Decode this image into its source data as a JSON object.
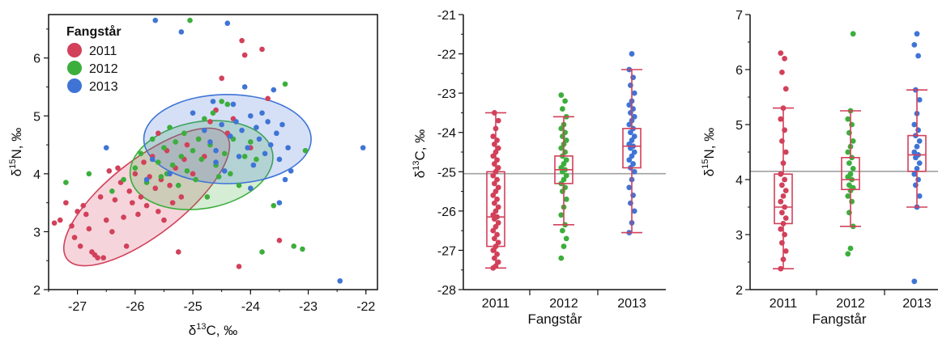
{
  "colors": {
    "2011": "#d2405a",
    "2012": "#3cae3c",
    "2013": "#3f74d6",
    "box": "#d2405a",
    "mean": "#a0a0a0",
    "axis": "#111111"
  },
  "legend": {
    "title": "Fangstår",
    "entries": [
      "2011",
      "2012",
      "2013"
    ]
  },
  "chart_data": [
    {
      "type": "scatter",
      "id": "scatter",
      "xlabel_symbol": "δ",
      "xlabel_sup": "13",
      "xlabel_rest": "C, ‰",
      "ylabel_symbol": "δ",
      "ylabel_sup": "15",
      "ylabel_rest": "N, ‰",
      "xlim": [
        -27.5,
        -21.8
      ],
      "ylim": [
        2,
        6.75
      ],
      "xticks": [
        "-27",
        "-26",
        "-25",
        "-24",
        "-23",
        "-22"
      ],
      "xtick_values": [
        -27,
        -26,
        -25,
        -24,
        -23,
        -22
      ],
      "yticks": [
        "2",
        "3",
        "4",
        "5",
        "6"
      ],
      "ytick_values": [
        2,
        3,
        4,
        5,
        6
      ],
      "series": [
        {
          "name": "2011",
          "points": [
            [
              -27.4,
              3.15
            ],
            [
              -27.3,
              3.2
            ],
            [
              -27.2,
              3.5
            ],
            [
              -27.1,
              3.1
            ],
            [
              -27.05,
              2.9
            ],
            [
              -27.0,
              3.35
            ],
            [
              -26.95,
              2.75
            ],
            [
              -26.9,
              3.45
            ],
            [
              -26.85,
              3.3
            ],
            [
              -26.8,
              3.05
            ],
            [
              -26.75,
              2.65
            ],
            [
              -26.7,
              2.6
            ],
            [
              -26.65,
              2.55
            ],
            [
              -26.6,
              3.6
            ],
            [
              -26.55,
              2.55
            ],
            [
              -26.5,
              3.2
            ],
            [
              -26.45,
              4.05
            ],
            [
              -26.4,
              3.0
            ],
            [
              -26.35,
              3.55
            ],
            [
              -26.3,
              4.1
            ],
            [
              -26.25,
              3.85
            ],
            [
              -26.2,
              3.25
            ],
            [
              -26.15,
              2.75
            ],
            [
              -26.1,
              3.7
            ],
            [
              -26.05,
              3.5
            ],
            [
              -26.0,
              4.0
            ],
            [
              -25.95,
              3.3
            ],
            [
              -25.9,
              3.6
            ],
            [
              -25.85,
              4.2
            ],
            [
              -25.8,
              3.45
            ],
            [
              -25.75,
              3.95
            ],
            [
              -25.7,
              4.3
            ],
            [
              -25.65,
              3.75
            ],
            [
              -25.6,
              3.35
            ],
            [
              -25.55,
              3.9
            ],
            [
              -25.5,
              3.2
            ],
            [
              -25.45,
              4.4
            ],
            [
              -25.4,
              3.8
            ],
            [
              -25.35,
              3.5
            ],
            [
              -25.3,
              4.1
            ],
            [
              -25.25,
              2.65
            ],
            [
              -25.2,
              3.6
            ],
            [
              -25.15,
              4.25
            ],
            [
              -25.1,
              4.5
            ],
            [
              -25.0,
              4.0
            ],
            [
              -24.9,
              4.6
            ],
            [
              -24.8,
              4.3
            ],
            [
              -24.7,
              4.9
            ],
            [
              -24.6,
              5.1
            ],
            [
              -24.5,
              5.65
            ],
            [
              -24.4,
              4.7
            ],
            [
              -24.3,
              4.95
            ],
            [
              -24.2,
              2.4
            ],
            [
              -24.15,
              6.3
            ],
            [
              -24.1,
              6.05
            ],
            [
              -23.8,
              6.15
            ],
            [
              -23.7,
              5.3
            ],
            [
              -23.5,
              2.85
            ],
            [
              -24.0,
              4.45
            ],
            [
              -25.6,
              4.7
            ]
          ]
        },
        {
          "name": "2012",
          "points": [
            [
              -27.2,
              3.85
            ],
            [
              -26.8,
              4.0
            ],
            [
              -26.4,
              3.7
            ],
            [
              -26.2,
              3.9
            ],
            [
              -26.0,
              4.1
            ],
            [
              -25.9,
              4.35
            ],
            [
              -25.8,
              3.85
            ],
            [
              -25.7,
              4.6
            ],
            [
              -25.6,
              4.2
            ],
            [
              -25.55,
              3.95
            ],
            [
              -25.5,
              4.45
            ],
            [
              -25.45,
              4.0
            ],
            [
              -25.4,
              4.8
            ],
            [
              -25.35,
              4.15
            ],
            [
              -25.3,
              4.55
            ],
            [
              -25.25,
              3.8
            ],
            [
              -25.2,
              4.3
            ],
            [
              -25.15,
              4.7
            ],
            [
              -25.1,
              4.05
            ],
            [
              -25.05,
              6.65
            ],
            [
              -25.0,
              4.4
            ],
            [
              -24.95,
              3.9
            ],
            [
              -24.9,
              4.6
            ],
            [
              -24.85,
              4.25
            ],
            [
              -24.8,
              4.95
            ],
            [
              -24.75,
              3.6
            ],
            [
              -24.7,
              4.5
            ],
            [
              -24.65,
              5.05
            ],
            [
              -24.6,
              4.15
            ],
            [
              -24.55,
              3.95
            ],
            [
              -24.5,
              5.25
            ],
            [
              -24.45,
              4.35
            ],
            [
              -24.4,
              5.2
            ],
            [
              -24.35,
              4.0
            ],
            [
              -24.3,
              4.6
            ],
            [
              -24.2,
              3.8
            ],
            [
              -24.1,
              4.3
            ],
            [
              -24.0,
              4.55
            ],
            [
              -23.9,
              4.25
            ],
            [
              -23.8,
              2.65
            ],
            [
              -23.6,
              3.45
            ],
            [
              -23.4,
              5.55
            ],
            [
              -23.25,
              2.75
            ],
            [
              -23.1,
              2.7
            ],
            [
              -23.05,
              4.4
            ]
          ]
        },
        {
          "name": "2013",
          "points": [
            [
              -26.5,
              4.45
            ],
            [
              -25.8,
              3.9
            ],
            [
              -25.7,
              4.25
            ],
            [
              -25.65,
              6.65
            ],
            [
              -25.4,
              4.0
            ],
            [
              -25.2,
              6.45
            ],
            [
              -25.0,
              5.05
            ],
            [
              -24.8,
              4.75
            ],
            [
              -24.7,
              4.55
            ],
            [
              -24.65,
              5.25
            ],
            [
              -24.6,
              4.4
            ],
            [
              -24.5,
              4.85
            ],
            [
              -24.45,
              4.05
            ],
            [
              -24.4,
              6.6
            ],
            [
              -24.35,
              4.65
            ],
            [
              -24.3,
              5.2
            ],
            [
              -24.25,
              4.9
            ],
            [
              -24.2,
              4.3
            ],
            [
              -24.15,
              4.75
            ],
            [
              -24.1,
              5.5
            ],
            [
              -24.05,
              4.45
            ],
            [
              -24.0,
              5.0
            ],
            [
              -23.95,
              4.15
            ],
            [
              -23.9,
              4.8
            ],
            [
              -23.85,
              4.6
            ],
            [
              -23.8,
              5.05
            ],
            [
              -23.75,
              4.35
            ],
            [
              -23.7,
              4.9
            ],
            [
              -23.65,
              4.5
            ],
            [
              -23.6,
              5.45
            ],
            [
              -23.55,
              4.7
            ],
            [
              -23.5,
              4.25
            ],
            [
              -23.45,
              4.85
            ],
            [
              -23.4,
              3.9
            ],
            [
              -23.35,
              4.45
            ],
            [
              -23.3,
              4.05
            ],
            [
              -23.5,
              3.5
            ],
            [
              -24.0,
              3.75
            ],
            [
              -24.6,
              4.2
            ],
            [
              -22.45,
              2.15
            ],
            [
              -22.05,
              4.45
            ]
          ]
        }
      ],
      "ellipses": [
        {
          "name": "2011",
          "cx": -25.8,
          "cy": 3.6,
          "rx": 1.75,
          "ry": 0.65,
          "angle_deg": -38
        },
        {
          "name": "2012",
          "cx": -24.85,
          "cy": 4.15,
          "rx": 1.25,
          "ry": 0.75,
          "angle_deg": -10
        },
        {
          "name": "2013",
          "cx": -24.4,
          "cy": 4.6,
          "rx": 1.45,
          "ry": 0.77,
          "angle_deg": 0
        }
      ]
    },
    {
      "type": "box",
      "id": "box13C",
      "categories": [
        "2011",
        "2012",
        "2013"
      ],
      "xlabel": "Fangstår",
      "ylabel_symbol": "δ",
      "ylabel_sup": "13",
      "ylabel_rest": "C, ‰",
      "ylim": [
        -28,
        -21
      ],
      "yticks": [
        "-28",
        "-27",
        "-26",
        "-25",
        "-24",
        "-23",
        "-22",
        "-21"
      ],
      "ytick_values": [
        -28,
        -27,
        -26,
        -25,
        -24,
        -23,
        -22,
        -21
      ],
      "mean_line": -25.05,
      "boxes": [
        {
          "category": "2011",
          "whislo": -27.45,
          "q1": -26.9,
          "med": -26.15,
          "q3": -25.0,
          "whishi": -23.5
        },
        {
          "category": "2012",
          "whislo": -26.35,
          "q1": -25.3,
          "med": -24.95,
          "q3": -24.6,
          "whishi": -23.6
        },
        {
          "category": "2013",
          "whislo": -26.55,
          "q1": -24.9,
          "med": -24.35,
          "q3": -23.9,
          "whishi": -22.4
        }
      ],
      "points": {
        "2011": [
          -27.45,
          -27.4,
          -27.3,
          -27.2,
          -27.1,
          -27.0,
          -26.9,
          -26.8,
          -26.7,
          -26.6,
          -26.5,
          -26.4,
          -26.3,
          -26.2,
          -26.15,
          -26.1,
          -26.0,
          -25.9,
          -25.8,
          -25.7,
          -25.6,
          -25.5,
          -25.4,
          -25.3,
          -25.2,
          -25.1,
          -25.0,
          -24.9,
          -24.8,
          -24.7,
          -24.6,
          -24.5,
          -24.4,
          -24.3,
          -24.2,
          -24.1,
          -23.9,
          -23.7,
          -23.5
        ],
        "2012": [
          -27.2,
          -26.9,
          -26.7,
          -26.5,
          -26.35,
          -26.1,
          -25.9,
          -25.7,
          -25.5,
          -25.4,
          -25.3,
          -25.2,
          -25.1,
          -25.0,
          -24.95,
          -24.9,
          -24.8,
          -24.7,
          -24.6,
          -24.5,
          -24.4,
          -24.3,
          -24.2,
          -24.1,
          -24.0,
          -23.9,
          -23.8,
          -23.6,
          -23.4,
          -23.2,
          -23.05
        ],
        "2013": [
          -26.55,
          -26.3,
          -26.0,
          -25.8,
          -25.6,
          -25.4,
          -25.2,
          -25.0,
          -24.9,
          -24.8,
          -24.7,
          -24.6,
          -24.5,
          -24.4,
          -24.35,
          -24.3,
          -24.2,
          -24.1,
          -24.0,
          -23.9,
          -23.8,
          -23.7,
          -23.6,
          -23.5,
          -23.4,
          -23.3,
          -23.2,
          -23.0,
          -22.8,
          -22.6,
          -22.4,
          -22.0
        ]
      }
    },
    {
      "type": "box",
      "id": "box15N",
      "categories": [
        "2011",
        "2012",
        "2013"
      ],
      "xlabel": "Fangstår",
      "ylabel_symbol": "δ",
      "ylabel_sup": "15",
      "ylabel_rest": "N, ‰",
      "ylim": [
        2,
        7
      ],
      "yticks": [
        "2",
        "3",
        "4",
        "5",
        "6",
        "7"
      ],
      "ytick_values": [
        2,
        3,
        4,
        5,
        6,
        7
      ],
      "mean_line": 4.15,
      "boxes": [
        {
          "category": "2011",
          "whislo": 2.38,
          "q1": 3.2,
          "med": 3.5,
          "q3": 4.1,
          "whishi": 5.3
        },
        {
          "category": "2012",
          "whislo": 3.15,
          "q1": 3.82,
          "med": 4.0,
          "q3": 4.4,
          "whishi": 5.25
        },
        {
          "category": "2013",
          "whislo": 3.5,
          "q1": 4.15,
          "med": 4.45,
          "q3": 4.8,
          "whishi": 5.63
        }
      ],
      "points": {
        "2011": [
          2.38,
          2.55,
          2.7,
          2.85,
          3.0,
          3.1,
          3.2,
          3.3,
          3.4,
          3.5,
          3.6,
          3.7,
          3.8,
          3.9,
          4.0,
          4.1,
          4.3,
          4.5,
          4.7,
          4.9,
          5.1,
          5.3,
          5.65,
          5.95,
          6.2,
          6.3
        ],
        "2012": [
          2.65,
          2.75,
          3.15,
          3.4,
          3.6,
          3.7,
          3.8,
          3.85,
          3.9,
          4.0,
          4.05,
          4.1,
          4.2,
          4.3,
          4.4,
          4.5,
          4.6,
          4.7,
          4.85,
          5.0,
          5.1,
          5.25,
          6.65
        ],
        "2013": [
          2.15,
          3.5,
          3.7,
          3.9,
          4.0,
          4.1,
          4.2,
          4.3,
          4.4,
          4.45,
          4.5,
          4.6,
          4.7,
          4.8,
          4.9,
          5.0,
          5.2,
          5.45,
          5.63,
          6.25,
          6.45,
          6.65
        ]
      }
    }
  ]
}
